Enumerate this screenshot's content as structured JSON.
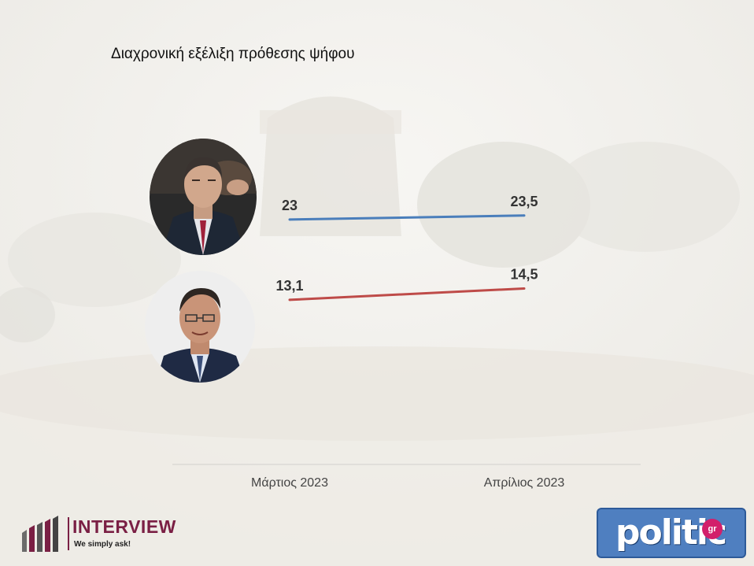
{
  "slide": {
    "title": "Διαχρονική εξέλιξη πρόθεσης ψήφου"
  },
  "chart_data": {
    "type": "line",
    "title": "Διαχρονική εξέλιξη πρόθεσης ψήφου",
    "categories": [
      "Μάρτιος 2023",
      "Απρίλιος 2023"
    ],
    "series": [
      {
        "values": [
          23,
          23.5
        ],
        "labels": [
          "23",
          "23,5"
        ],
        "color": "#4a7ebb"
      },
      {
        "values": [
          13.1,
          14.5
        ],
        "labels": [
          "13,1",
          "14,5"
        ],
        "color": "#be4b48"
      }
    ],
    "xlabel": "",
    "ylabel": "",
    "grid": false,
    "legend": "none"
  },
  "logos": {
    "interview": {
      "name": "INTERVIEW",
      "tagline": "We simply ask!",
      "color": "#7a1f44"
    },
    "politic": {
      "name": "politic",
      "suffix": "gr",
      "color": "#4f7fc0"
    }
  }
}
